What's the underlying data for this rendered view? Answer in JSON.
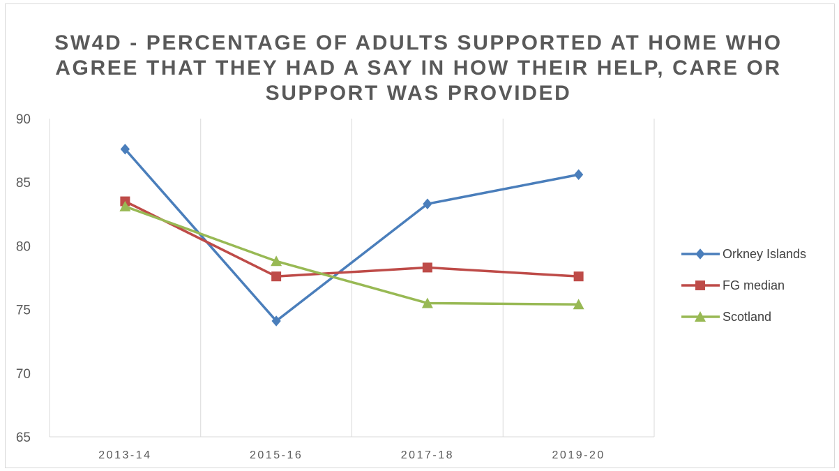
{
  "chart_data": {
    "type": "line",
    "title": "SW4D - PERCENTAGE OF ADULTS SUPPORTED AT HOME WHO AGREE THAT THEY HAD A SAY IN HOW THEIR HELP, CARE OR SUPPORT WAS PROVIDED",
    "categories": [
      "2013-14",
      "2015-16",
      "2017-18",
      "2019-20"
    ],
    "ylim": [
      65,
      90
    ],
    "yticks": [
      "65",
      "70",
      "75",
      "80",
      "85",
      "90"
    ],
    "grid": "vertical",
    "legend_position": "right",
    "series": [
      {
        "name": "Orkney Islands",
        "values": [
          87.6,
          74.1,
          83.3,
          85.6
        ],
        "color": "#4a7ebb",
        "marker": "diamond"
      },
      {
        "name": "FG median",
        "values": [
          83.5,
          77.6,
          78.3,
          77.6
        ],
        "color": "#be4b48",
        "marker": "square"
      },
      {
        "name": "Scotland",
        "values": [
          83.1,
          78.8,
          75.5,
          75.4
        ],
        "color": "#98b954",
        "marker": "triangle"
      }
    ]
  }
}
